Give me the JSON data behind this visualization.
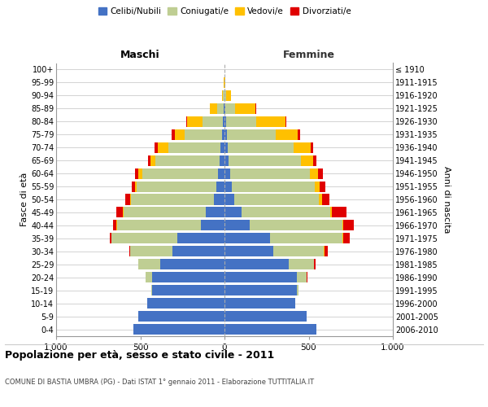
{
  "age_groups": [
    "0-4",
    "5-9",
    "10-14",
    "15-19",
    "20-24",
    "25-29",
    "30-34",
    "35-39",
    "40-44",
    "45-49",
    "50-54",
    "55-59",
    "60-64",
    "65-69",
    "70-74",
    "75-79",
    "80-84",
    "85-89",
    "90-94",
    "95-99",
    "100+"
  ],
  "birth_years": [
    "2006-2010",
    "2001-2005",
    "1996-2000",
    "1991-1995",
    "1986-1990",
    "1981-1985",
    "1976-1980",
    "1971-1975",
    "1966-1970",
    "1961-1965",
    "1956-1960",
    "1951-1955",
    "1946-1950",
    "1941-1945",
    "1936-1940",
    "1931-1935",
    "1926-1930",
    "1921-1925",
    "1916-1920",
    "1911-1915",
    "≤ 1910"
  ],
  "males": {
    "celibe": [
      540,
      510,
      460,
      430,
      430,
      380,
      310,
      280,
      140,
      110,
      65,
      50,
      40,
      30,
      25,
      15,
      10,
      5,
      0,
      0,
      0
    ],
    "coniugato": [
      0,
      0,
      0,
      5,
      40,
      130,
      250,
      390,
      500,
      490,
      490,
      470,
      450,
      380,
      310,
      220,
      120,
      40,
      10,
      2,
      0
    ],
    "vedovo": [
      0,
      0,
      0,
      0,
      0,
      0,
      0,
      2,
      2,
      3,
      5,
      10,
      20,
      30,
      60,
      60,
      90,
      40,
      5,
      2,
      0
    ],
    "divorziato": [
      0,
      0,
      0,
      0,
      0,
      2,
      5,
      10,
      20,
      40,
      30,
      20,
      20,
      15,
      20,
      20,
      5,
      0,
      0,
      0,
      0
    ]
  },
  "females": {
    "nubile": [
      545,
      490,
      420,
      430,
      430,
      380,
      290,
      270,
      150,
      100,
      60,
      45,
      35,
      25,
      20,
      15,
      10,
      5,
      2,
      0,
      0
    ],
    "coniugata": [
      0,
      0,
      2,
      10,
      60,
      150,
      300,
      430,
      550,
      530,
      500,
      490,
      470,
      430,
      390,
      290,
      180,
      60,
      10,
      2,
      0
    ],
    "vedova": [
      0,
      0,
      0,
      0,
      0,
      0,
      2,
      3,
      5,
      10,
      20,
      30,
      50,
      70,
      100,
      130,
      170,
      120,
      25,
      5,
      2
    ],
    "divorziata": [
      0,
      0,
      0,
      0,
      5,
      10,
      20,
      40,
      65,
      85,
      45,
      35,
      30,
      20,
      15,
      15,
      5,
      2,
      0,
      0,
      0
    ]
  },
  "colors": {
    "celibe": "#4472C4",
    "coniugato": "#BFCE93",
    "vedovo": "#FFC000",
    "divorziato": "#E00000"
  },
  "legend_labels": [
    "Celibi/Nubili",
    "Coniugati/e",
    "Vedovi/e",
    "Divorziati/e"
  ],
  "title": "Popolazione per età, sesso e stato civile - 2011",
  "subtitle": "COMUNE DI BASTIA UMBRA (PG) - Dati ISTAT 1° gennaio 2011 - Elaborazione TUTTITALIA.IT",
  "ylabel_left": "Fasce di età",
  "ylabel_right": "Anni di nascita",
  "xlabel_left": "Maschi",
  "xlabel_right": "Femmine",
  "xlim": 1000,
  "background_color": "#ffffff",
  "grid_color": "#cccccc"
}
